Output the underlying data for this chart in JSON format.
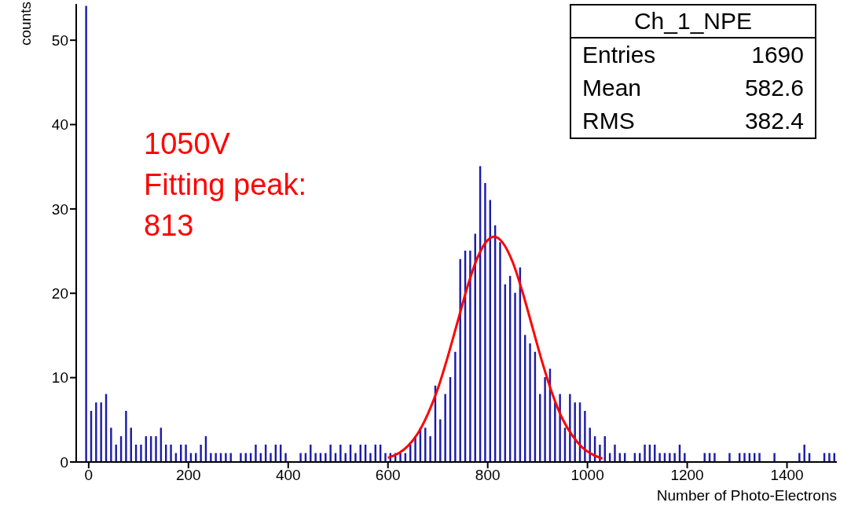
{
  "chart_data": {
    "type": "histogram",
    "xlabel": "Number of Photo-Electrons",
    "ylabel": "counts",
    "bins": [
      -20,
      -10,
      0,
      10,
      20,
      30,
      40,
      50,
      60,
      70,
      80,
      90,
      100,
      110,
      120,
      130,
      140,
      150,
      160,
      170,
      180,
      190,
      200,
      210,
      220,
      230,
      240,
      250,
      260,
      270,
      280,
      290,
      300,
      310,
      320,
      330,
      340,
      350,
      360,
      370,
      380,
      390,
      400,
      410,
      420,
      430,
      440,
      450,
      460,
      470,
      480,
      490,
      500,
      510,
      520,
      530,
      540,
      550,
      560,
      570,
      580,
      590,
      600,
      610,
      620,
      630,
      640,
      650,
      660,
      670,
      680,
      690,
      700,
      710,
      720,
      730,
      740,
      750,
      760,
      770,
      780,
      790,
      800,
      810,
      820,
      830,
      840,
      850,
      860,
      870,
      880,
      890,
      900,
      910,
      920,
      930,
      940,
      950,
      960,
      970,
      980,
      990,
      1000,
      1010,
      1020,
      1030,
      1040,
      1050,
      1060,
      1070,
      1080,
      1090,
      1100,
      1110,
      1120,
      1130,
      1140,
      1150,
      1160,
      1170,
      1180,
      1190,
      1200,
      1210,
      1220,
      1230,
      1240,
      1250,
      1260,
      1270,
      1280,
      1290,
      1300,
      1310,
      1320,
      1330,
      1340,
      1350,
      1360,
      1370,
      1380,
      1390,
      1400,
      1410,
      1420,
      1430,
      1440,
      1450,
      1460,
      1470,
      1480,
      1490,
      1500
    ],
    "values": [
      0,
      54,
      6,
      7,
      7,
      8,
      4,
      2,
      3,
      6,
      4,
      2,
      2,
      3,
      3,
      3,
      4,
      2,
      2,
      1,
      2,
      2,
      1,
      1,
      2,
      3,
      1,
      1,
      1,
      1,
      1,
      0,
      1,
      1,
      1,
      2,
      1,
      2,
      1,
      2,
      2,
      1,
      0,
      0,
      1,
      1,
      2,
      1,
      1,
      1,
      2,
      1,
      2,
      1,
      2,
      1,
      2,
      2,
      1,
      2,
      2,
      1,
      1,
      1,
      1,
      1,
      2,
      3,
      4,
      4,
      3,
      9,
      5,
      8,
      10,
      13,
      24,
      25,
      25,
      27,
      35,
      33,
      31,
      28,
      26,
      21,
      22,
      20,
      23,
      15,
      14,
      13,
      8,
      10,
      11,
      7,
      8,
      4,
      8,
      7,
      7,
      6,
      4,
      3,
      2,
      3,
      1,
      2,
      1,
      1,
      0,
      1,
      1,
      2,
      2,
      2,
      1,
      1,
      1,
      1,
      2,
      1,
      0,
      0,
      0,
      1,
      1,
      1,
      0,
      0,
      1,
      0,
      1,
      1,
      1,
      1,
      1,
      0,
      0,
      1,
      0,
      0,
      0,
      0,
      1,
      2,
      1,
      0,
      0,
      1,
      1,
      1
    ],
    "color": "#1c1ca8",
    "series": [
      {
        "type": "line",
        "color": "#ff0000",
        "x": [
          600,
          620,
          640,
          660,
          680,
          700,
          720,
          740,
          760,
          780,
          800,
          813,
          830,
          850,
          870,
          890,
          910,
          930,
          950,
          970,
          990,
          1010,
          1030
        ],
        "values": [
          0.5,
          1.0,
          1.9,
          3.4,
          5.7,
          8.7,
          12.5,
          16.7,
          20.9,
          24.3,
          26.3,
          26.7,
          26.0,
          23.7,
          20.1,
          15.9,
          11.7,
          8.0,
          5.1,
          3.1,
          1.7,
          0.9,
          0.4
        ]
      }
    ],
    "xlim": [
      -25,
      1500
    ],
    "xticks": [
      0,
      200,
      400,
      600,
      800,
      1000,
      1200,
      1400
    ],
    "ylim": [
      0,
      54.3
    ],
    "yticks": [
      0,
      10,
      20,
      30,
      40,
      50
    ],
    "grid": false,
    "legend": false,
    "annotations": [
      "Ch_1_NPE",
      "Entries",
      "1690",
      "Mean",
      "582.6",
      "RMS",
      "382.4",
      "1050V\nFitting peak:\n813"
    ]
  }
}
